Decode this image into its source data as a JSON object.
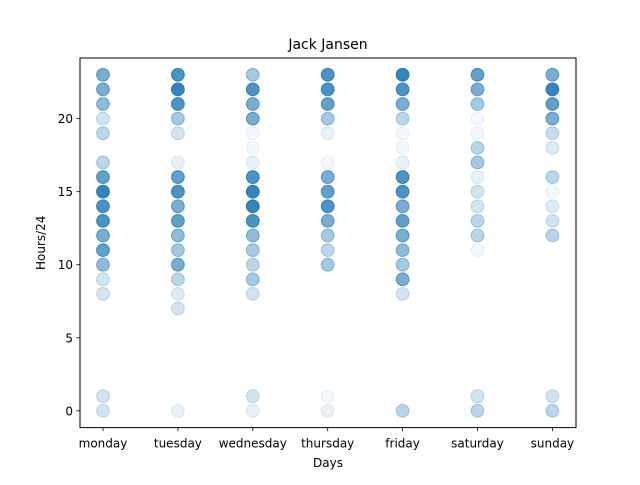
{
  "chart_data": {
    "type": "scatter",
    "title": "Jack Jansen",
    "xlabel": "Days",
    "ylabel": "Hours/24",
    "categories": [
      "monday",
      "tuesday",
      "wednesday",
      "thursday",
      "friday",
      "saturday",
      "sunday"
    ],
    "yticks": [
      0,
      5,
      10,
      15,
      20
    ],
    "ylim": [
      -1.15,
      24.15
    ],
    "grid": false,
    "marker_color": "#1f77b4",
    "points": [
      {
        "day": "monday",
        "hour": 0,
        "opacity": 0.2
      },
      {
        "day": "monday",
        "hour": 1,
        "opacity": 0.2
      },
      {
        "day": "monday",
        "hour": 8,
        "opacity": 0.2
      },
      {
        "day": "monday",
        "hour": 9,
        "opacity": 0.2
      },
      {
        "day": "monday",
        "hour": 10,
        "opacity": 0.5
      },
      {
        "day": "monday",
        "hour": 11,
        "opacity": 0.7
      },
      {
        "day": "monday",
        "hour": 12,
        "opacity": 0.6
      },
      {
        "day": "monday",
        "hour": 13,
        "opacity": 0.8
      },
      {
        "day": "monday",
        "hour": 14,
        "opacity": 0.8
      },
      {
        "day": "monday",
        "hour": 15,
        "opacity": 0.9
      },
      {
        "day": "monday",
        "hour": 16,
        "opacity": 0.7
      },
      {
        "day": "monday",
        "hour": 17,
        "opacity": 0.3
      },
      {
        "day": "monday",
        "hour": 19,
        "opacity": 0.3
      },
      {
        "day": "monday",
        "hour": 20,
        "opacity": 0.2
      },
      {
        "day": "monday",
        "hour": 21,
        "opacity": 0.5
      },
      {
        "day": "monday",
        "hour": 22,
        "opacity": 0.6
      },
      {
        "day": "monday",
        "hour": 23,
        "opacity": 0.6
      },
      {
        "day": "tuesday",
        "hour": 0,
        "opacity": 0.1
      },
      {
        "day": "tuesday",
        "hour": 7,
        "opacity": 0.2
      },
      {
        "day": "tuesday",
        "hour": 8,
        "opacity": 0.15
      },
      {
        "day": "tuesday",
        "hour": 9,
        "opacity": 0.3
      },
      {
        "day": "tuesday",
        "hour": 10,
        "opacity": 0.6
      },
      {
        "day": "tuesday",
        "hour": 11,
        "opacity": 0.4
      },
      {
        "day": "tuesday",
        "hour": 12,
        "opacity": 0.5
      },
      {
        "day": "tuesday",
        "hour": 13,
        "opacity": 0.7
      },
      {
        "day": "tuesday",
        "hour": 14,
        "opacity": 0.6
      },
      {
        "day": "tuesday",
        "hour": 15,
        "opacity": 0.8
      },
      {
        "day": "tuesday",
        "hour": 16,
        "opacity": 0.7
      },
      {
        "day": "tuesday",
        "hour": 17,
        "opacity": 0.1
      },
      {
        "day": "tuesday",
        "hour": 19,
        "opacity": 0.2
      },
      {
        "day": "tuesday",
        "hour": 20,
        "opacity": 0.4
      },
      {
        "day": "tuesday",
        "hour": 21,
        "opacity": 0.8
      },
      {
        "day": "tuesday",
        "hour": 22,
        "opacity": 0.9
      },
      {
        "day": "tuesday",
        "hour": 23,
        "opacity": 0.8
      },
      {
        "day": "wednesday",
        "hour": 0,
        "opacity": 0.1
      },
      {
        "day": "wednesday",
        "hour": 1,
        "opacity": 0.2
      },
      {
        "day": "wednesday",
        "hour": 8,
        "opacity": 0.2
      },
      {
        "day": "wednesday",
        "hour": 9,
        "opacity": 0.4
      },
      {
        "day": "wednesday",
        "hour": 10,
        "opacity": 0.3
      },
      {
        "day": "wednesday",
        "hour": 11,
        "opacity": 0.4
      },
      {
        "day": "wednesday",
        "hour": 12,
        "opacity": 0.5
      },
      {
        "day": "wednesday",
        "hour": 13,
        "opacity": 0.8
      },
      {
        "day": "wednesday",
        "hour": 14,
        "opacity": 0.9
      },
      {
        "day": "wednesday",
        "hour": 15,
        "opacity": 0.9
      },
      {
        "day": "wednesday",
        "hour": 16,
        "opacity": 0.8
      },
      {
        "day": "wednesday",
        "hour": 17,
        "opacity": 0.1
      },
      {
        "day": "wednesday",
        "hour": 18,
        "opacity": 0.05
      },
      {
        "day": "wednesday",
        "hour": 19,
        "opacity": 0.05
      },
      {
        "day": "wednesday",
        "hour": 20,
        "opacity": 0.6
      },
      {
        "day": "wednesday",
        "hour": 21,
        "opacity": 0.6
      },
      {
        "day": "wednesday",
        "hour": 22,
        "opacity": 0.8
      },
      {
        "day": "wednesday",
        "hour": 23,
        "opacity": 0.4
      },
      {
        "day": "thursday",
        "hour": 0,
        "opacity": 0.1
      },
      {
        "day": "thursday",
        "hour": 1,
        "opacity": 0.05
      },
      {
        "day": "thursday",
        "hour": 10,
        "opacity": 0.4
      },
      {
        "day": "thursday",
        "hour": 11,
        "opacity": 0.3
      },
      {
        "day": "thursday",
        "hour": 12,
        "opacity": 0.4
      },
      {
        "day": "thursday",
        "hour": 13,
        "opacity": 0.6
      },
      {
        "day": "thursday",
        "hour": 14,
        "opacity": 0.8
      },
      {
        "day": "thursday",
        "hour": 15,
        "opacity": 0.7
      },
      {
        "day": "thursday",
        "hour": 16,
        "opacity": 0.6
      },
      {
        "day": "thursday",
        "hour": 17,
        "opacity": 0.05
      },
      {
        "day": "thursday",
        "hour": 19,
        "opacity": 0.1
      },
      {
        "day": "thursday",
        "hour": 20,
        "opacity": 0.4
      },
      {
        "day": "thursday",
        "hour": 21,
        "opacity": 0.7
      },
      {
        "day": "thursday",
        "hour": 22,
        "opacity": 0.8
      },
      {
        "day": "thursday",
        "hour": 23,
        "opacity": 0.8
      },
      {
        "day": "friday",
        "hour": 0,
        "opacity": 0.3
      },
      {
        "day": "friday",
        "hour": 8,
        "opacity": 0.2
      },
      {
        "day": "friday",
        "hour": 9,
        "opacity": 0.6
      },
      {
        "day": "friday",
        "hour": 10,
        "opacity": 0.4
      },
      {
        "day": "friday",
        "hour": 11,
        "opacity": 0.5
      },
      {
        "day": "friday",
        "hour": 12,
        "opacity": 0.6
      },
      {
        "day": "friday",
        "hour": 13,
        "opacity": 0.7
      },
      {
        "day": "friday",
        "hour": 14,
        "opacity": 0.6
      },
      {
        "day": "friday",
        "hour": 15,
        "opacity": 0.8
      },
      {
        "day": "friday",
        "hour": 16,
        "opacity": 0.8
      },
      {
        "day": "friday",
        "hour": 17,
        "opacity": 0.1
      },
      {
        "day": "friday",
        "hour": 18,
        "opacity": 0.05
      },
      {
        "day": "friday",
        "hour": 19,
        "opacity": 0.05
      },
      {
        "day": "friday",
        "hour": 20,
        "opacity": 0.3
      },
      {
        "day": "friday",
        "hour": 21,
        "opacity": 0.6
      },
      {
        "day": "friday",
        "hour": 22,
        "opacity": 0.8
      },
      {
        "day": "friday",
        "hour": 23,
        "opacity": 0.9
      },
      {
        "day": "saturday",
        "hour": 0,
        "opacity": 0.3
      },
      {
        "day": "saturday",
        "hour": 1,
        "opacity": 0.2
      },
      {
        "day": "saturday",
        "hour": 11,
        "opacity": 0.05
      },
      {
        "day": "saturday",
        "hour": 12,
        "opacity": 0.3
      },
      {
        "day": "saturday",
        "hour": 13,
        "opacity": 0.3
      },
      {
        "day": "saturday",
        "hour": 14,
        "opacity": 0.2
      },
      {
        "day": "saturday",
        "hour": 15,
        "opacity": 0.2
      },
      {
        "day": "saturday",
        "hour": 16,
        "opacity": 0.1
      },
      {
        "day": "saturday",
        "hour": 17,
        "opacity": 0.4
      },
      {
        "day": "saturday",
        "hour": 18,
        "opacity": 0.3
      },
      {
        "day": "saturday",
        "hour": 19,
        "opacity": 0.05
      },
      {
        "day": "saturday",
        "hour": 20,
        "opacity": 0.05
      },
      {
        "day": "saturday",
        "hour": 21,
        "opacity": 0.4
      },
      {
        "day": "saturday",
        "hour": 22,
        "opacity": 0.6
      },
      {
        "day": "saturday",
        "hour": 23,
        "opacity": 0.7
      },
      {
        "day": "sunday",
        "hour": 0,
        "opacity": 0.3
      },
      {
        "day": "sunday",
        "hour": 1,
        "opacity": 0.2
      },
      {
        "day": "sunday",
        "hour": 12,
        "opacity": 0.3
      },
      {
        "day": "sunday",
        "hour": 13,
        "opacity": 0.2
      },
      {
        "day": "sunday",
        "hour": 14,
        "opacity": 0.15
      },
      {
        "day": "sunday",
        "hour": 15,
        "opacity": 0.05
      },
      {
        "day": "sunday",
        "hour": 16,
        "opacity": 0.3
      },
      {
        "day": "sunday",
        "hour": 18,
        "opacity": 0.15
      },
      {
        "day": "sunday",
        "hour": 19,
        "opacity": 0.25
      },
      {
        "day": "sunday",
        "hour": 20,
        "opacity": 0.6
      },
      {
        "day": "sunday",
        "hour": 21,
        "opacity": 0.7
      },
      {
        "day": "sunday",
        "hour": 22,
        "opacity": 0.9
      },
      {
        "day": "sunday",
        "hour": 23,
        "opacity": 0.6
      }
    ]
  }
}
